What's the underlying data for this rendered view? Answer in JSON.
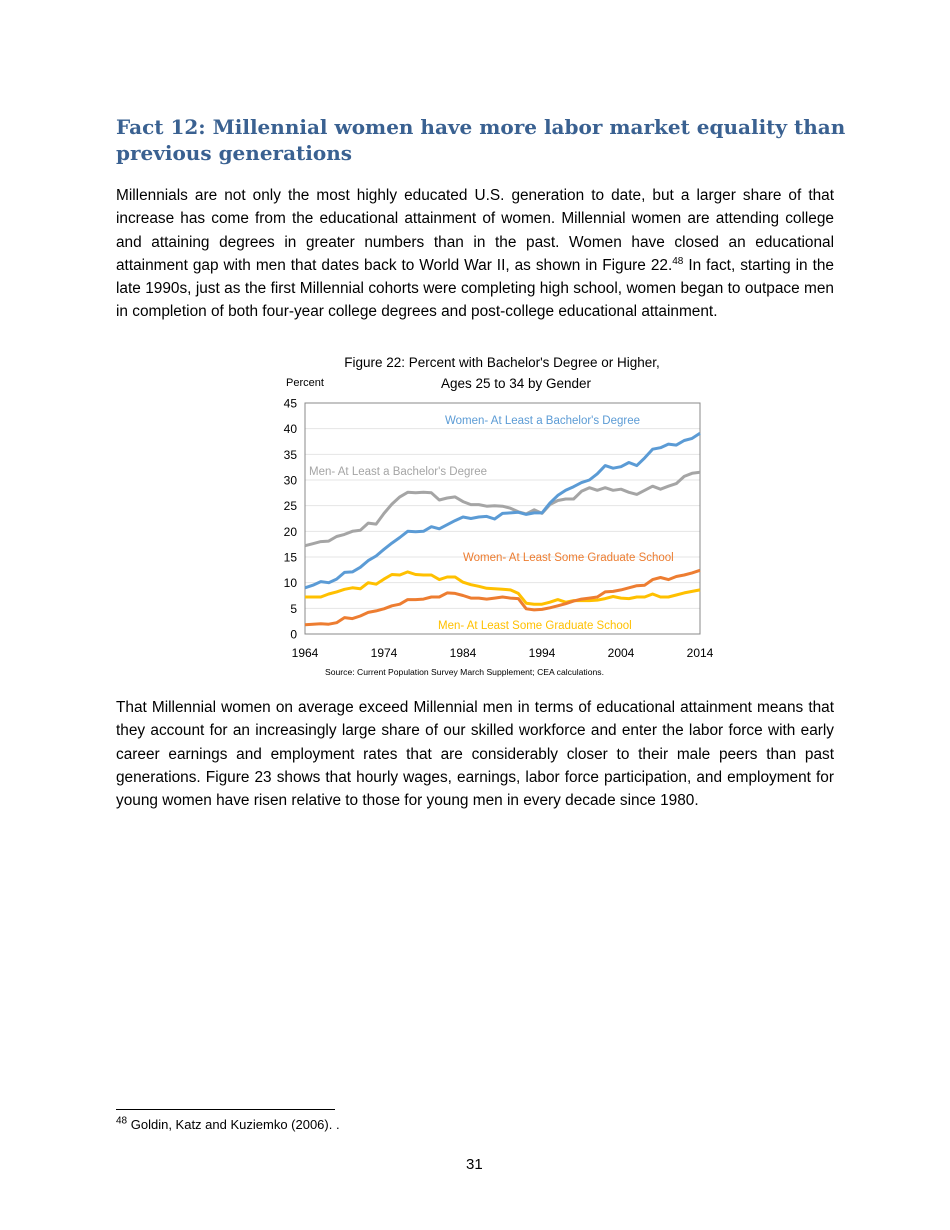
{
  "heading": "Fact 12: Millennial women have more labor market equality than previous generations",
  "paragraph1": {
    "before": "Millennials are not only the most highly educated U.S. generation to date, but a larger share of that increase has come from the educational attainment of women. Millennial women are attending college and attaining degrees in greater numbers than in the past. Women have closed an educational attainment gap with men that dates back to World War II, as shown in Figure 22.",
    "footnote_ref": "48",
    "after": " In fact, starting in the late 1990s, just as the first Millennial cohorts were completing high school, women began to outpace men in completion of both four-year college degrees and post-college educational attainment."
  },
  "paragraph2": "That Millennial women on average exceed Millennial men in terms of educational attainment means that they account for an increasingly large share of our skilled workforce and enter the labor force with early career earnings and employment rates that are considerably closer to their male peers than past generations. Figure 23 shows that hourly wages, earnings, labor force participation, and employment for young women have risen relative to those for young men in every decade since 1980.",
  "chart_data": {
    "type": "line",
    "title": "Figure 22: Percent with Bachelor's Degree or Higher,",
    "subtitle": "Ages 25 to 34 by Gender",
    "ylabel": "Percent",
    "xlabel": "",
    "ylim": [
      0,
      45
    ],
    "yticks": [
      "0",
      "5",
      "10",
      "15",
      "20",
      "25",
      "30",
      "35",
      "40",
      "45"
    ],
    "xlim": [
      1964,
      2014
    ],
    "xticks": [
      "1964",
      "1974",
      "1984",
      "1994",
      "2004",
      "2014"
    ],
    "grid": true,
    "source": "Source: Current Population Survey March Supplement; CEA calculations.",
    "x_start": 1964,
    "series": [
      {
        "name": "Women- At Least a Bachelor's Degree",
        "color": "#5b9bd5",
        "values": [
          9,
          9.5,
          10.2,
          10,
          10.7,
          12,
          12.1,
          13,
          14.3,
          15.2,
          16.5,
          17.7,
          18.8,
          20,
          19.9,
          20,
          20.9,
          20.5,
          21.3,
          22.1,
          22.8,
          22.5,
          22.8,
          22.9,
          22.4,
          23.5,
          23.6,
          23.7,
          23.3,
          23.6,
          23.6,
          25.5,
          27,
          28,
          28.7,
          29.5,
          30,
          31.2,
          32.8,
          32.3,
          32.6,
          33.4,
          32.8,
          34.3,
          36,
          36.3,
          37,
          36.8,
          37.7,
          38.1,
          39.1
        ]
      },
      {
        "name": "Men- At Least a Bachelor's Degree",
        "color": "#a5a5a5",
        "values": [
          17.2,
          17.6,
          18,
          18.1,
          19,
          19.4,
          20,
          20.2,
          21.6,
          21.4,
          23.5,
          25.3,
          26.7,
          27.6,
          27.5,
          27.6,
          27.5,
          26.1,
          26.5,
          26.7,
          25.8,
          25.2,
          25.2,
          24.9,
          25,
          24.9,
          24.5,
          23.8,
          23.4,
          24.2,
          23.5,
          25.2,
          26,
          26.3,
          26.3,
          27.8,
          28.5,
          28,
          28.5,
          28,
          28.2,
          27.6,
          27.2,
          28,
          28.8,
          28.2,
          28.8,
          29.3,
          30.7,
          31.3,
          31.5
        ]
      },
      {
        "name": "Women- At Least Some Graduate School",
        "color": "#ed7d31",
        "values": [
          1.8,
          1.9,
          2,
          1.9,
          2.2,
          3.2,
          3,
          3.5,
          4.2,
          4.5,
          4.9,
          5.5,
          5.8,
          6.7,
          6.7,
          6.8,
          7.2,
          7.2,
          8,
          7.9,
          7.5,
          7,
          7,
          6.8,
          7,
          7.2,
          7,
          6.9,
          4.9,
          4.7,
          4.8,
          5.1,
          5.5,
          5.9,
          6.4,
          6.8,
          7,
          7.2,
          8.2,
          8.3,
          8.6,
          9,
          9.4,
          9.5,
          10.6,
          11,
          10.6,
          11.2,
          11.5,
          11.9,
          12.4
        ]
      },
      {
        "name": "Men- At Least Some Graduate School",
        "color": "#ffc000",
        "values": [
          7.2,
          7.2,
          7.2,
          7.8,
          8.2,
          8.7,
          9,
          8.8,
          10,
          9.7,
          10.7,
          11.6,
          11.5,
          12.1,
          11.6,
          11.5,
          11.5,
          10.6,
          11.1,
          11.1,
          10.1,
          9.6,
          9.3,
          8.9,
          8.8,
          8.7,
          8.6,
          7.9,
          6,
          5.8,
          5.8,
          6.2,
          6.7,
          6.2,
          6.5,
          6.5,
          6.5,
          6.6,
          6.9,
          7.3,
          7,
          6.9,
          7.2,
          7.2,
          7.8,
          7.2,
          7.2,
          7.6,
          8,
          8.3,
          8.6
        ]
      }
    ]
  },
  "footnote": {
    "number": "48",
    "text": " Goldin, Katz and Kuziemko (2006). ."
  },
  "page_number": "31"
}
